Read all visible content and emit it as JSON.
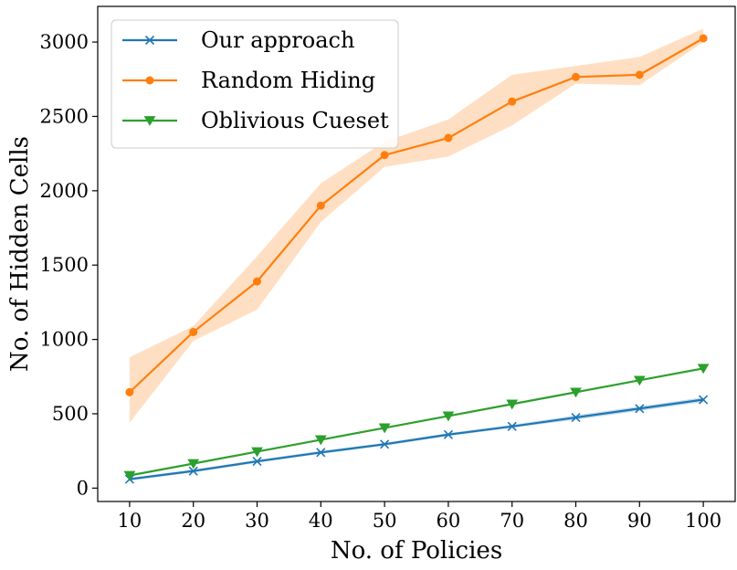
{
  "chart_data": {
    "type": "line",
    "title": "",
    "xlabel": "No. of Policies",
    "ylabel": "No. of Hidden Cells",
    "xlim": [
      5,
      105
    ],
    "ylim": [
      -90,
      3240
    ],
    "x": [
      10,
      20,
      30,
      40,
      50,
      60,
      70,
      80,
      90,
      100
    ],
    "x_ticks": [
      10,
      20,
      30,
      40,
      50,
      60,
      70,
      80,
      90,
      100
    ],
    "y_ticks": [
      0,
      500,
      1000,
      1500,
      2000,
      2500,
      3000
    ],
    "grid": false,
    "legend_position": "top-left",
    "series": [
      {
        "name": "Our approach",
        "color": "#1f77b4",
        "marker": "x",
        "values": [
          60,
          115,
          180,
          240,
          295,
          360,
          415,
          475,
          535,
          595
        ],
        "band_lower": [
          50,
          105,
          170,
          230,
          285,
          350,
          405,
          460,
          520,
          580
        ],
        "band_upper": [
          70,
          125,
          190,
          250,
          305,
          370,
          425,
          490,
          550,
          610
        ]
      },
      {
        "name": "Random Hiding",
        "color": "#ff7f0e",
        "marker": "circle",
        "values": [
          645,
          1050,
          1390,
          1900,
          2240,
          2355,
          2600,
          2765,
          2780,
          3025
        ],
        "band_lower": [
          440,
          990,
          1200,
          1790,
          2160,
          2230,
          2440,
          2720,
          2710,
          3000
        ],
        "band_upper": [
          880,
          1090,
          1560,
          2050,
          2330,
          2480,
          2780,
          2840,
          2900,
          3090
        ]
      },
      {
        "name": "Oblivious Cueset",
        "color": "#2ca02c",
        "marker": "triangle-down",
        "values": [
          85,
          165,
          245,
          325,
          405,
          485,
          565,
          645,
          725,
          805
        ]
      }
    ]
  }
}
